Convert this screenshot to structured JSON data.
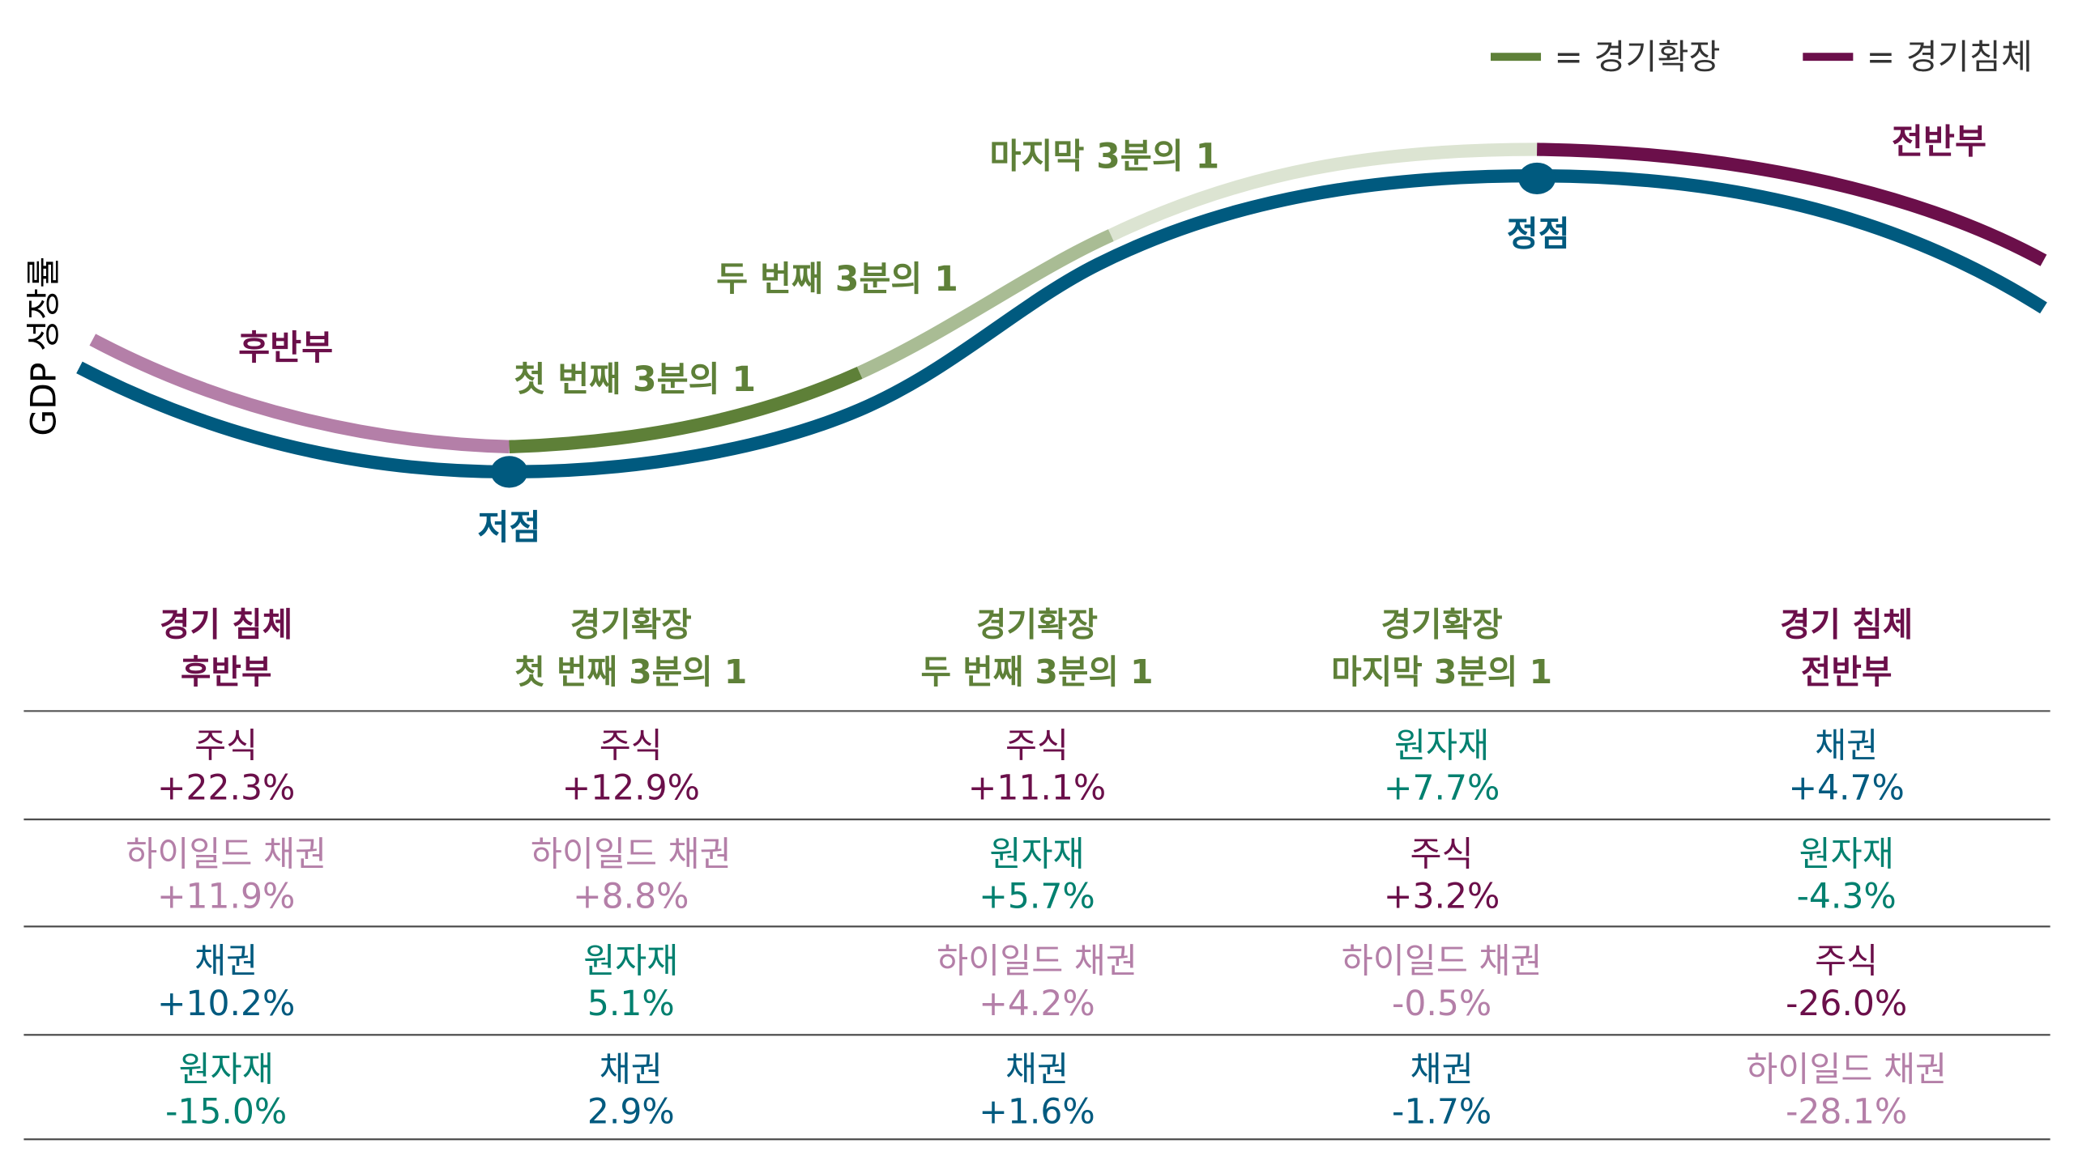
{
  "colors": {
    "trough_blue": "#005A7F",
    "recession": "#6B0F4A",
    "recession_light": "#B47FA8",
    "expansion_dark": "#5E8038",
    "expansion_mid": "#A9BC94",
    "expansion_light": "#DCE4D2",
    "commodities_teal": "#00806F",
    "high_yield": "#B47FA8",
    "stocks": "#6B0F4A",
    "bonds": "#005A7F"
  },
  "legend": [
    {
      "label": "= 경기확장",
      "color": "#5E8038"
    },
    {
      "label": "= 경기침체",
      "color": "#6B0F4A"
    }
  ],
  "y_axis_label": "GDP 성장률",
  "curve_labels": {
    "late_recession": "후반부",
    "first_third": "첫 번째 3분의 1",
    "second_third": "두 번째 3분의 1",
    "last_third": "마지막 3분의 1",
    "early_recession": "전반부",
    "trough": "저점",
    "peak": "정점"
  },
  "table": {
    "columns": [
      {
        "line1": "경기 침체",
        "line2": "후반부",
        "color": "#6B0F4A"
      },
      {
        "line1": "경기확장",
        "line2": "첫 번째 3분의 1",
        "color": "#5E8038"
      },
      {
        "line1": "경기확장",
        "line2": "두 번째 3분의 1",
        "color": "#5E8038"
      },
      {
        "line1": "경기확장",
        "line2": "마지막 3분의 1",
        "color": "#5E8038"
      },
      {
        "line1": "경기 침체",
        "line2": "전반부",
        "color": "#6B0F4A"
      }
    ],
    "rows": [
      [
        {
          "asset": "주식",
          "value": "+22.3%",
          "color": "#6B0F4A"
        },
        {
          "asset": "주식",
          "value": "+12.9%",
          "color": "#6B0F4A"
        },
        {
          "asset": "주식",
          "value": "+11.1%",
          "color": "#6B0F4A"
        },
        {
          "asset": "원자재",
          "value": "+7.7%",
          "color": "#00806F"
        },
        {
          "asset": "채권",
          "value": "+4.7%",
          "color": "#005A7F"
        }
      ],
      [
        {
          "asset": "하이일드 채권",
          "value": "+11.9%",
          "color": "#B47FA8"
        },
        {
          "asset": "하이일드 채권",
          "value": "+8.8%",
          "color": "#B47FA8"
        },
        {
          "asset": "원자재",
          "value": "+5.7%",
          "color": "#00806F"
        },
        {
          "asset": "주식",
          "value": "+3.2%",
          "color": "#6B0F4A"
        },
        {
          "asset": "원자재",
          "value": "-4.3%",
          "color": "#00806F"
        }
      ],
      [
        {
          "asset": "채권",
          "value": "+10.2%",
          "color": "#005A7F"
        },
        {
          "asset": "원자재",
          "value": "5.1%",
          "color": "#00806F"
        },
        {
          "asset": "하이일드 채권",
          "value": "+4.2%",
          "color": "#B47FA8"
        },
        {
          "asset": "하이일드 채권",
          "value": "-0.5%",
          "color": "#B47FA8"
        },
        {
          "asset": "주식",
          "value": "-26.0%",
          "color": "#6B0F4A"
        }
      ],
      [
        {
          "asset": "원자재",
          "value": "-15.0%",
          "color": "#00806F"
        },
        {
          "asset": "채권",
          "value": "2.9%",
          "color": "#005A7F"
        },
        {
          "asset": "채권",
          "value": "+1.6%",
          "color": "#005A7F"
        },
        {
          "asset": "채권",
          "value": "-1.7%",
          "color": "#005A7F"
        },
        {
          "asset": "하이일드 채권",
          "value": "-28.1%",
          "color": "#B47FA8"
        }
      ]
    ]
  }
}
